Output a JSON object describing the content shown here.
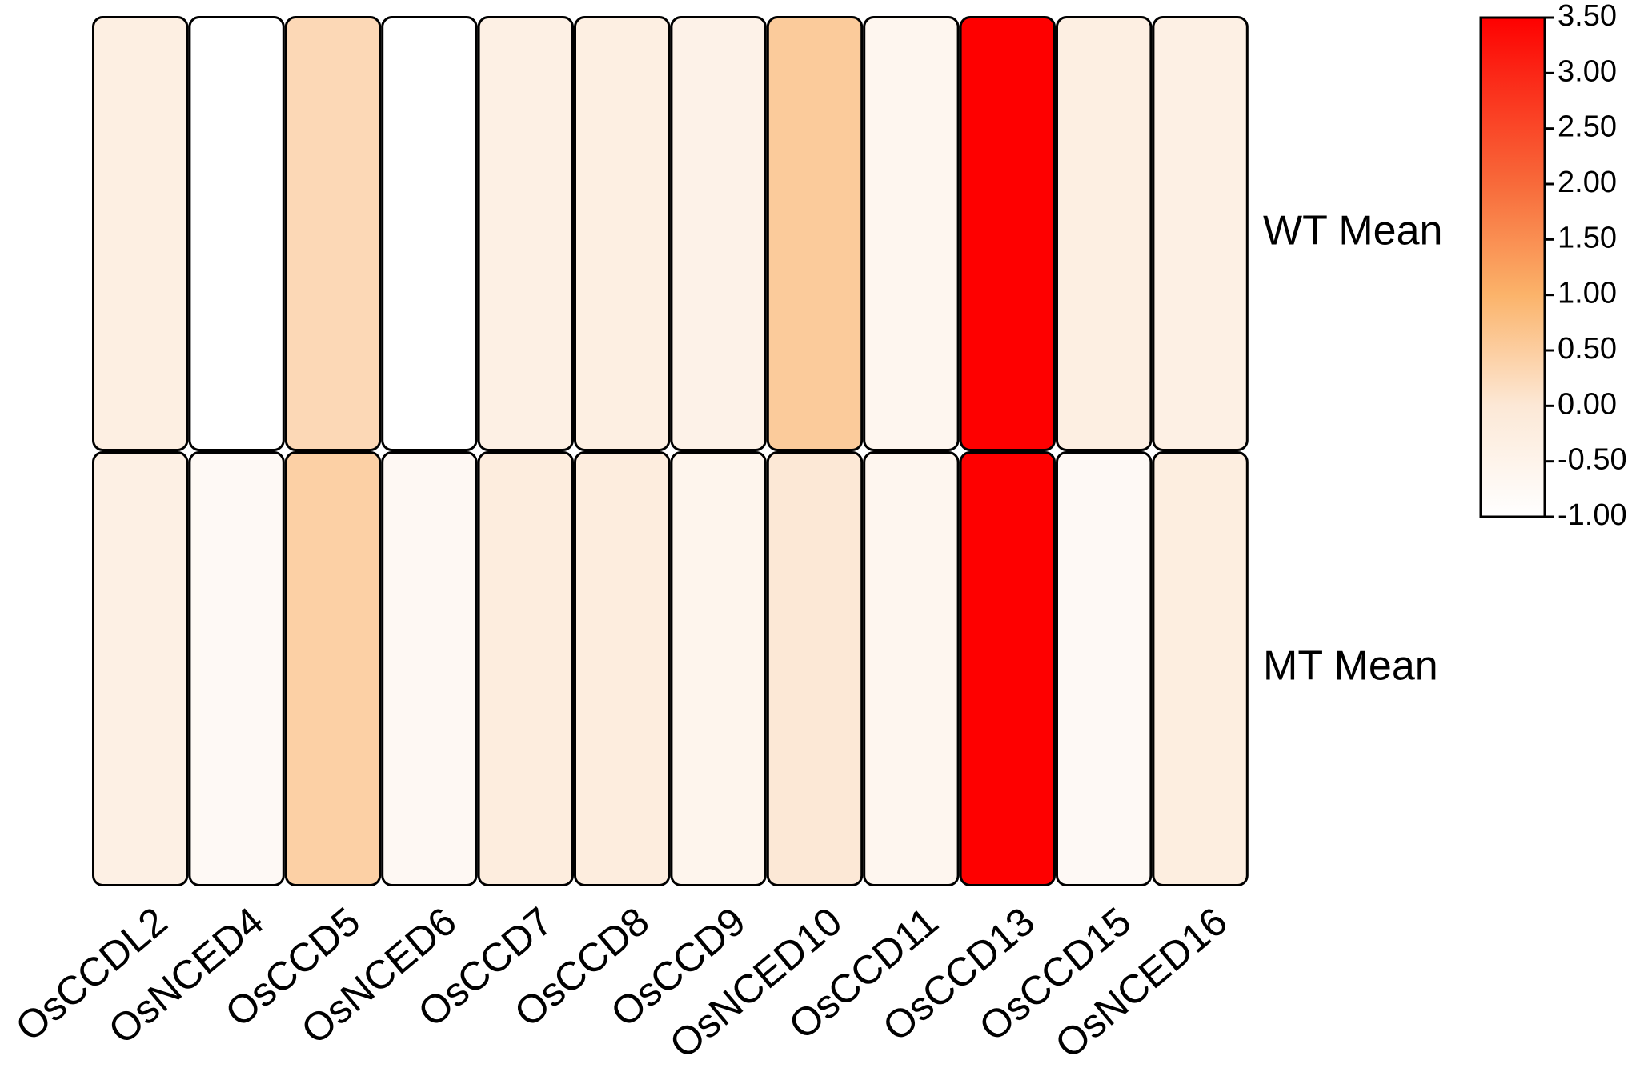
{
  "chart_data": {
    "type": "heatmap",
    "title": "",
    "xlabel": "",
    "ylabel": "",
    "columns": [
      "OsCCDL2",
      "OsNCED4",
      "OsCCD5",
      "OsNCED6",
      "OsCCD7",
      "OsCCD8",
      "OsCCD9",
      "OsNCED10",
      "OsCCD11",
      "OsCCD13",
      "OsCCD15",
      "OsNCED16"
    ],
    "rows": [
      "WT Mean",
      "MT Mean"
    ],
    "values": [
      [
        -0.3,
        -1.0,
        0.3,
        -1.0,
        -0.35,
        -0.3,
        -0.45,
        0.55,
        -0.6,
        3.5,
        -0.3,
        -0.35
      ],
      [
        -0.35,
        -0.75,
        0.45,
        -0.7,
        -0.2,
        -0.2,
        -0.55,
        0.0,
        -0.6,
        3.5,
        -0.75,
        -0.25
      ]
    ],
    "colorbar": {
      "min": -1.0,
      "max": 3.5,
      "ticks": [
        "3.50",
        "3.00",
        "2.50",
        "2.00",
        "1.50",
        "1.00",
        "0.50",
        "0.00",
        "-0.50",
        "-1.00"
      ],
      "tick_values": [
        3.5,
        3.0,
        2.5,
        2.0,
        1.5,
        1.0,
        0.5,
        0.0,
        -0.5,
        -1.0
      ],
      "stops": [
        {
          "value": -1.0,
          "color": "#ffffff"
        },
        {
          "value": 0.0,
          "color": "#fce8d6"
        },
        {
          "value": 1.0,
          "color": "#fbb36a"
        },
        {
          "value": 2.0,
          "color": "#f86a3a"
        },
        {
          "value": 3.0,
          "color": "#fb2616"
        },
        {
          "value": 3.5,
          "color": "#fe0000"
        }
      ]
    },
    "legend": "right",
    "grid": false
  }
}
